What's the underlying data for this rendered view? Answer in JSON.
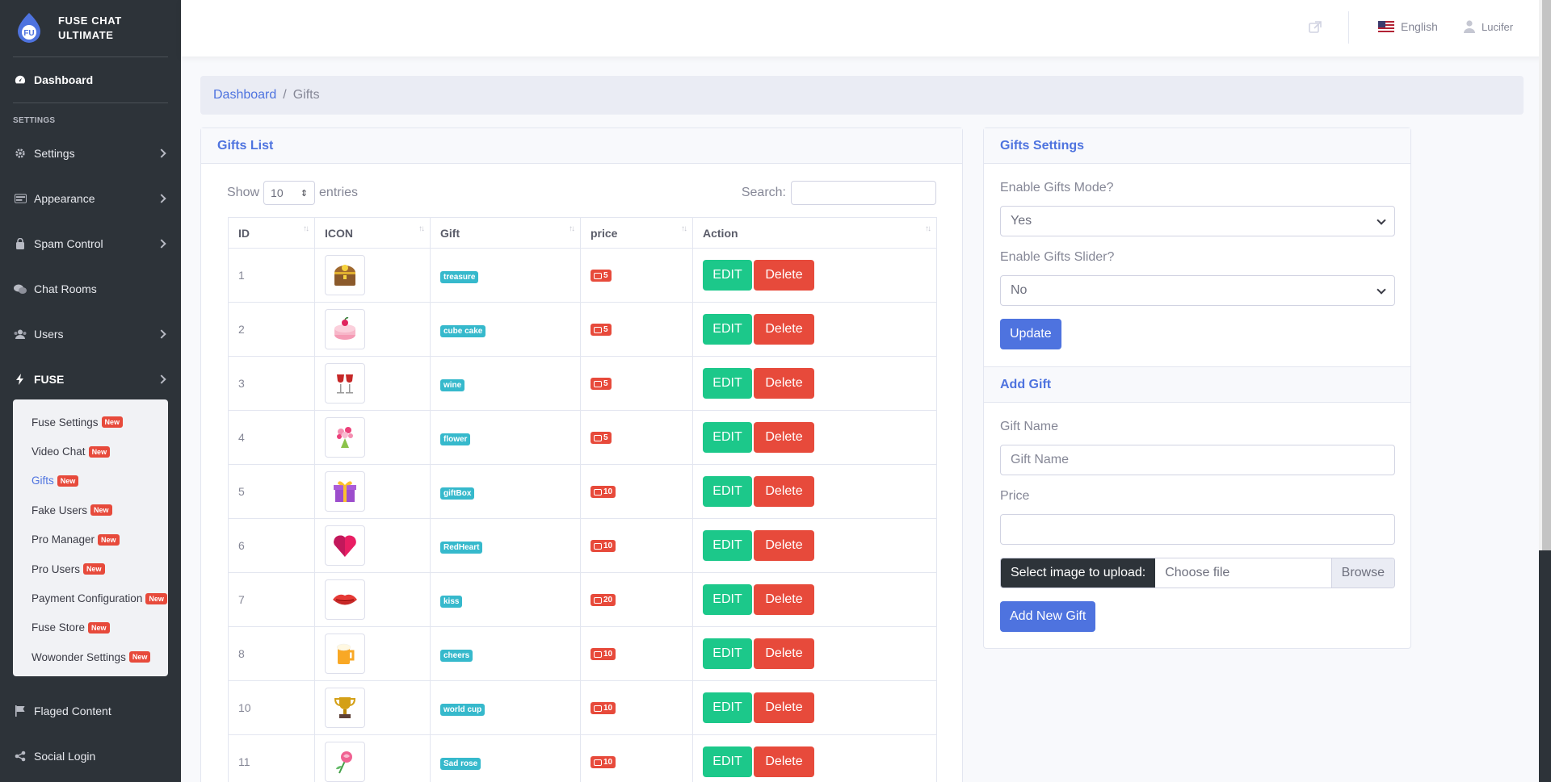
{
  "brand": {
    "line1": "FUSE CHAT",
    "line2": "ULTIMATE",
    "logo_text": "FU"
  },
  "sidebar": {
    "dashboard": "Dashboard",
    "heading": "SETTINGS",
    "items": [
      "Settings",
      "Appearance",
      "Spam Control",
      "Chat Rooms",
      "Users",
      "FUSE"
    ],
    "submenu": [
      {
        "label": "Fuse Settings",
        "badge": "New"
      },
      {
        "label": "Video Chat",
        "badge": "New"
      },
      {
        "label": "Gifts",
        "badge": "New"
      },
      {
        "label": "Fake Users",
        "badge": "New"
      },
      {
        "label": "Pro Manager",
        "badge": "New"
      },
      {
        "label": "Pro Users",
        "badge": "New"
      },
      {
        "label": "Payment Configuration",
        "badge": "New"
      },
      {
        "label": "Fuse Store",
        "badge": "New"
      },
      {
        "label": "Wowonder Settings",
        "badge": "New"
      }
    ],
    "bottom": [
      "Flaged Content",
      "Social Login"
    ]
  },
  "topbar": {
    "language": "English",
    "user": "Lucifer"
  },
  "breadcrumb": {
    "home": "Dashboard",
    "sep": "/",
    "current": "Gifts"
  },
  "gifts_list": {
    "title": "Gifts List",
    "show": "Show",
    "entries_value": "10",
    "entries": "entries",
    "search_label": "Search:",
    "columns": [
      "ID",
      "ICON",
      "Gift",
      "price",
      "Action"
    ],
    "edit_label": "EDIT",
    "delete_label": "Delete",
    "rows": [
      {
        "id": "1",
        "gift": "treasure",
        "price": "5",
        "icon": "treasure-chest"
      },
      {
        "id": "2",
        "gift": "cube cake",
        "price": "5",
        "icon": "cake"
      },
      {
        "id": "3",
        "gift": "wine",
        "price": "5",
        "icon": "wine-glasses"
      },
      {
        "id": "4",
        "gift": "flower",
        "price": "5",
        "icon": "flower-bouquet"
      },
      {
        "id": "5",
        "gift": "giftBox",
        "price": "10",
        "icon": "gift-box"
      },
      {
        "id": "6",
        "gift": "RedHeart",
        "price": "10",
        "icon": "red-heart"
      },
      {
        "id": "7",
        "gift": "kiss",
        "price": "20",
        "icon": "lips"
      },
      {
        "id": "8",
        "gift": "cheers",
        "price": "10",
        "icon": "beer-mug"
      },
      {
        "id": "10",
        "gift": "world cup",
        "price": "10",
        "icon": "trophy"
      },
      {
        "id": "11",
        "gift": "Sad rose",
        "price": "10",
        "icon": "rose"
      }
    ]
  },
  "gifts_settings": {
    "title": "Gifts Settings",
    "mode_label": "Enable Gifts Mode?",
    "mode_value": "Yes",
    "slider_label": "Enable Gifts Slider?",
    "slider_value": "No",
    "update_label": "Update"
  },
  "add_gift": {
    "title": "Add Gift",
    "name_label": "Gift Name",
    "name_placeholder": "Gift Name",
    "price_label": "Price",
    "price_value": "",
    "upload_prefix": "Select image to upload:",
    "choose_file": "Choose file",
    "browse": "Browse",
    "submit_label": "Add New Gift"
  },
  "colors": {
    "primary": "#4e73df",
    "success": "#1cc88a",
    "danger": "#e74a3b",
    "info": "#36b9cc",
    "sidebar": "#2d3339"
  }
}
